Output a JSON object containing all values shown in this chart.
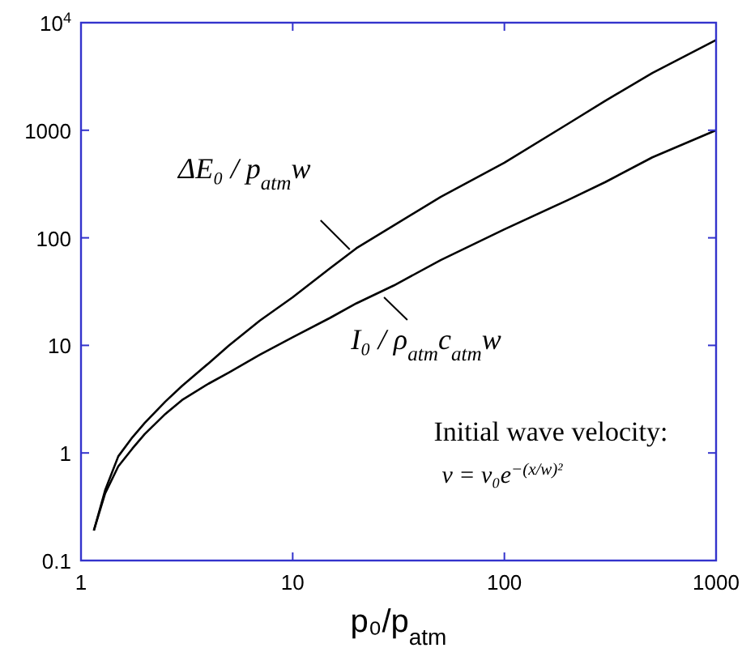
{
  "chart_data": {
    "type": "line",
    "xlabel": "p₀/p$_{atm}$",
    "log": "xy",
    "xlim": [
      1,
      1000
    ],
    "ylim": [
      0.1,
      10000
    ],
    "xticks": [
      1,
      10,
      100,
      1000
    ],
    "yticks": [
      0.1,
      1,
      10,
      100,
      1000,
      {
        "value": 10000,
        "label": "10$^{4}$"
      }
    ],
    "grid": false,
    "marker": "none",
    "line_style": "solid",
    "series": [
      {
        "color": "#000000",
        "x": [
          1.15,
          1.3,
          1.5,
          1.75,
          2,
          2.5,
          3,
          4,
          5,
          7,
          10,
          15,
          20,
          30,
          50,
          100,
          200,
          300,
          500,
          1000
        ],
        "values": [
          0.19,
          0.45,
          0.93,
          1.4,
          1.9,
          3,
          4.2,
          6.8,
          10,
          17,
          28,
          52,
          80,
          130,
          240,
          500,
          1150,
          1880,
          3400,
          6900
        ]
      },
      {
        "color": "#000000",
        "x": [
          1.15,
          1.3,
          1.5,
          1.75,
          2,
          2.5,
          3,
          4,
          5,
          7,
          10,
          15,
          20,
          30,
          50,
          100,
          200,
          300,
          500,
          1000
        ],
        "values": [
          0.19,
          0.42,
          0.75,
          1.1,
          1.5,
          2.3,
          3.1,
          4.4,
          5.6,
          8.2,
          11.9,
          18,
          24.6,
          36,
          62,
          120,
          225,
          330,
          560,
          1000
        ]
      }
    ],
    "annotations": [
      {
        "text": "ΔE₀ / p$_{atm}$w",
        "x": 18.6,
        "y": 78
      },
      {
        "text": "I₀ / ρ$_{atm}$c$_{atm}$w",
        "x": 27,
        "y": 28
      },
      "Initial wave velocity:",
      "v = v₀e$^{−(x/w)²}$"
    ]
  }
}
